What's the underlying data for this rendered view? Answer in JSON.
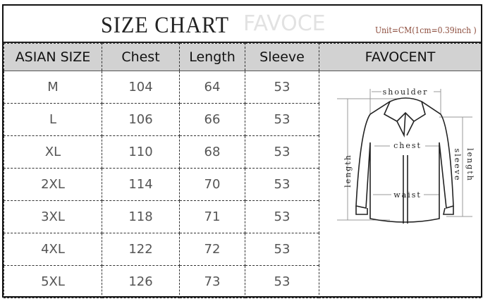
{
  "title": "SIZE CHART",
  "unit": "Unit=CM(1cm=0.39inch )",
  "headers": [
    "ASIAN SIZE",
    "Chest",
    "Length",
    "Sleeve",
    "FAVOCENT"
  ],
  "rows": [
    [
      "M",
      "104",
      "64",
      "53"
    ],
    [
      "L",
      "106",
      "66",
      "53"
    ],
    [
      "XL",
      "110",
      "68",
      "53"
    ],
    [
      "2XL",
      "114",
      "70",
      "53"
    ],
    [
      "3XL",
      "118",
      "71",
      "53"
    ],
    [
      "4XL",
      "122",
      "72",
      "53"
    ],
    [
      "5XL",
      "126",
      "73",
      "53"
    ]
  ],
  "diagram": {
    "shoulder": "shoulder",
    "chest": "chest",
    "waist": "waist",
    "length": "length",
    "sleeve": "sleeve",
    "sleeve_length": "length"
  },
  "watermark": "FAVOCE"
}
